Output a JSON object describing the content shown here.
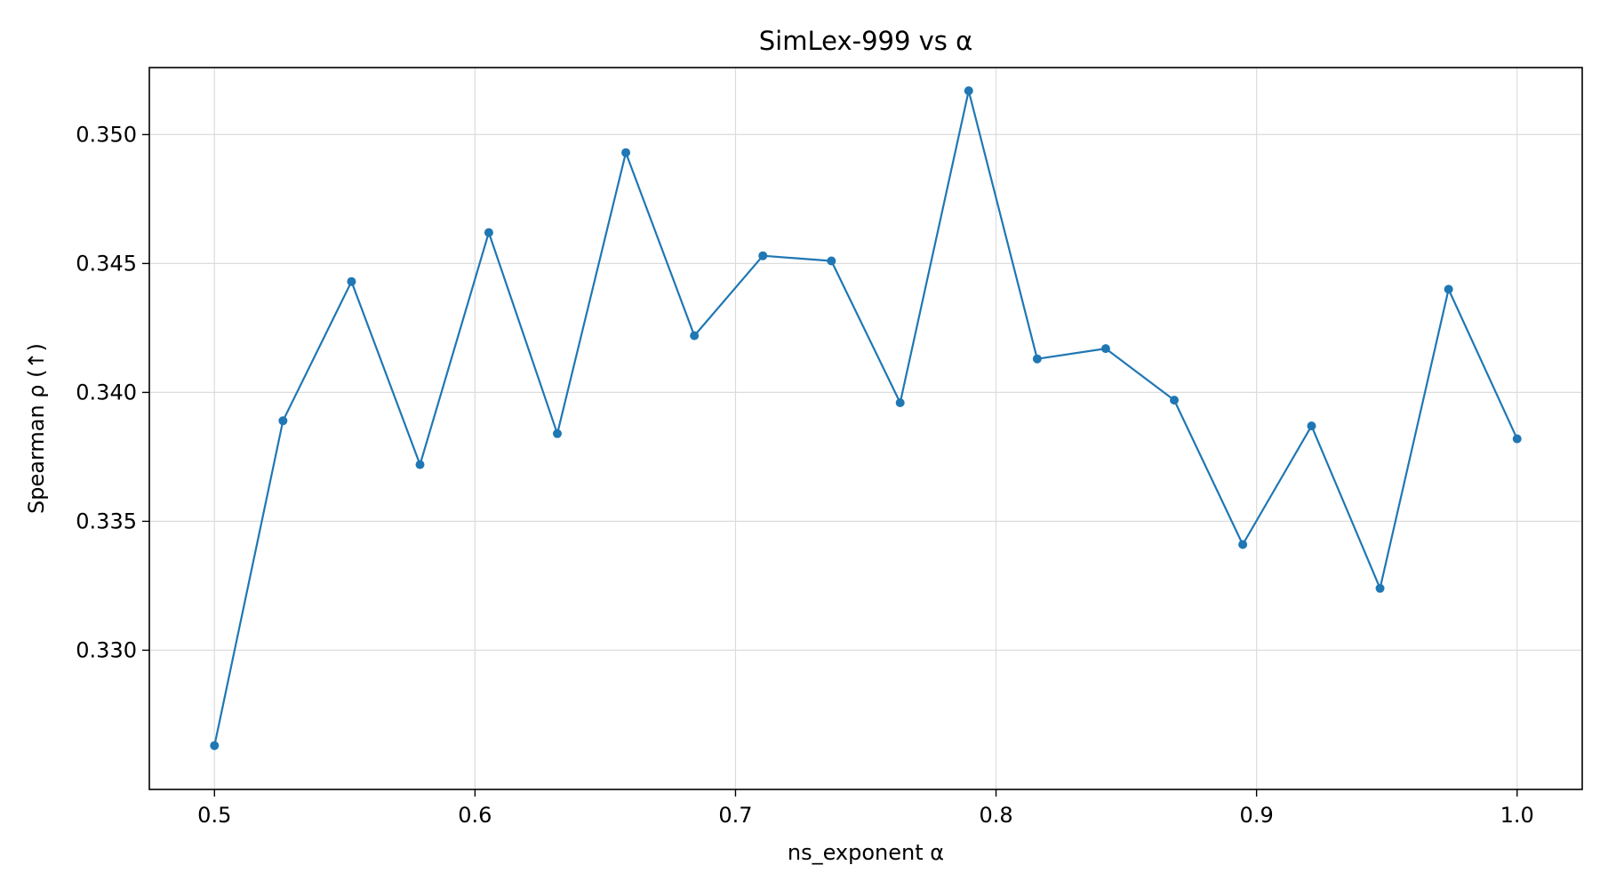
{
  "chart_data": {
    "type": "line",
    "title": "SimLex-999 vs α",
    "xlabel": "ns_exponent α",
    "ylabel": "Spearman ρ (↑)",
    "xlim": [
      0.475,
      1.025
    ],
    "ylim": [
      0.3246,
      0.3526
    ],
    "x_ticks": [
      0.5,
      0.6,
      0.7,
      0.8,
      0.9,
      1.0
    ],
    "x_tick_labels": [
      "0.5",
      "0.6",
      "0.7",
      "0.8",
      "0.9",
      "1.0"
    ],
    "y_ticks": [
      0.33,
      0.335,
      0.34,
      0.345,
      0.35
    ],
    "y_tick_labels": [
      "0.330",
      "0.335",
      "0.340",
      "0.345",
      "0.350"
    ],
    "grid": true,
    "color": "#1f77b4",
    "series": [
      {
        "x": [
          0.5,
          0.5263,
          0.5526,
          0.5789,
          0.6053,
          0.6316,
          0.6579,
          0.6842,
          0.7105,
          0.7368,
          0.7632,
          0.7895,
          0.8158,
          0.8421,
          0.8684,
          0.8947,
          0.9211,
          0.9474,
          0.9737,
          1.0
        ],
        "values": [
          0.3263,
          0.3389,
          0.3443,
          0.3372,
          0.3462,
          0.3384,
          0.3493,
          0.3422,
          0.3453,
          0.3451,
          0.3396,
          0.3517,
          0.3413,
          0.3417,
          0.3397,
          0.3341,
          0.3387,
          0.3324,
          0.344,
          0.3382
        ]
      }
    ]
  }
}
